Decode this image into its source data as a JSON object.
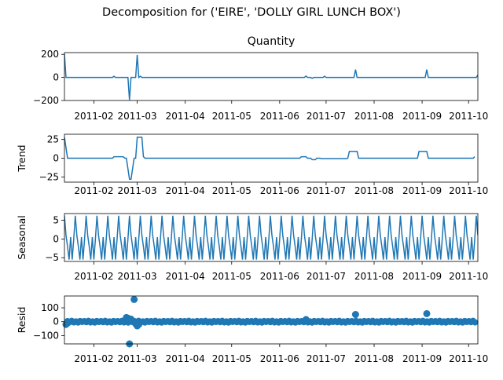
{
  "suptitle": "Decomposition for ('EIRE', 'DOLLY GIRL LUNCH BOX')",
  "colors": {
    "line": "#1f77b4",
    "axis": "#000000",
    "background": "#ffffff"
  },
  "chart_data": [
    {
      "type": "line",
      "title": "Quantity",
      "ylabel": "",
      "ylim": [
        -200,
        215
      ],
      "yticks": [
        -200,
        0,
        200
      ],
      "xlim": [
        "2011-01-13",
        "2011-10-07"
      ],
      "xticks": [
        "2011-02",
        "2011-03",
        "2011-04",
        "2011-05",
        "2011-06",
        "2011-07",
        "2011-08",
        "2011-09",
        "2011-10"
      ],
      "series": [
        {
          "x": [
            "2011-01-13",
            "2011-01-14",
            "2011-02-13",
            "2011-02-14",
            "2011-02-15",
            "2011-02-23",
            "2011-02-24",
            "2011-02-25",
            "2011-02-26",
            "2011-02-27",
            "2011-02-28",
            "2011-03-01",
            "2011-03-02",
            "2011-03-03",
            "2011-03-04",
            "2011-06-17",
            "2011-06-18",
            "2011-06-19",
            "2011-06-21",
            "2011-06-22",
            "2011-06-23",
            "2011-06-24",
            "2011-06-29",
            "2011-06-30",
            "2011-07-01",
            "2011-07-19",
            "2011-07-20",
            "2011-07-21",
            "2011-09-03",
            "2011-09-04",
            "2011-09-05",
            "2011-10-06",
            "2011-10-07"
          ],
          "values": [
            200,
            0,
            0,
            10,
            0,
            0,
            -195,
            0,
            0,
            0,
            0,
            195,
            0,
            10,
            0,
            0,
            12,
            0,
            0,
            -8,
            0,
            0,
            0,
            10,
            0,
            0,
            68,
            0,
            0,
            68,
            0,
            0,
            20
          ]
        }
      ]
    },
    {
      "type": "line",
      "title": "",
      "ylabel": "Trend",
      "ylim": [
        -32,
        32
      ],
      "yticks": [
        -25,
        0,
        25
      ],
      "xlim": [
        "2011-01-13",
        "2011-10-07"
      ],
      "xticks": [
        "2011-02",
        "2011-03",
        "2011-04",
        "2011-05",
        "2011-06",
        "2011-07",
        "2011-08",
        "2011-09",
        "2011-10"
      ],
      "series": [
        {
          "x": [
            "2011-01-13",
            "2011-01-15",
            "2011-02-13",
            "2011-02-14",
            "2011-02-20",
            "2011-02-21",
            "2011-02-22",
            "2011-02-24",
            "2011-02-25",
            "2011-02-27",
            "2011-02-28",
            "2011-03-01",
            "2011-03-04",
            "2011-03-05",
            "2011-03-06",
            "2011-06-14",
            "2011-06-15",
            "2011-06-18",
            "2011-06-19",
            "2011-06-21",
            "2011-06-22",
            "2011-06-24",
            "2011-06-25",
            "2011-06-27",
            "2011-06-28",
            "2011-07-14",
            "2011-07-15",
            "2011-07-16",
            "2011-07-21",
            "2011-07-22",
            "2011-07-23",
            "2011-08-28",
            "2011-08-29",
            "2011-08-30",
            "2011-09-04",
            "2011-09-05",
            "2011-09-06",
            "2011-10-04",
            "2011-10-05"
          ],
          "values": [
            28,
            0,
            0,
            2,
            2,
            0,
            0,
            -28,
            -28,
            0,
            0,
            28,
            28,
            2,
            0,
            0,
            2,
            2,
            0,
            0,
            -2,
            -2,
            0,
            0,
            -0.5,
            -0.5,
            0,
            9,
            9,
            0,
            0,
            0,
            0,
            9,
            9,
            0,
            0,
            0,
            2
          ]
        }
      ]
    },
    {
      "type": "line",
      "title": "",
      "ylabel": "Seasonal",
      "ylim": [
        -6,
        6.8
      ],
      "yticks": [
        -5,
        0,
        5
      ],
      "xlim": [
        "2011-01-13",
        "2011-10-07"
      ],
      "xticks": [
        "2011-02",
        "2011-03",
        "2011-04",
        "2011-05",
        "2011-06",
        "2011-07",
        "2011-08",
        "2011-09",
        "2011-10"
      ],
      "period_days": 7,
      "start": "2011-01-13",
      "end": "2011-10-07",
      "pattern": [
        6.2,
        1.0,
        -2.0,
        -5.5,
        0.5,
        -5.5,
        0.0
      ]
    },
    {
      "type": "scatter",
      "title": "",
      "ylabel": "Resid",
      "ylim": [
        -160,
        185
      ],
      "yticks": [
        -100,
        0,
        100
      ],
      "xlim": [
        "2011-01-13",
        "2011-10-07"
      ],
      "xticks": [
        "2011-02",
        "2011-03",
        "2011-04",
        "2011-05",
        "2011-06",
        "2011-07",
        "2011-08",
        "2011-09",
        "2011-10"
      ],
      "baseline": {
        "start": "2011-01-15",
        "end": "2011-10-06",
        "step_days": 1.35,
        "values": [
          4,
          -3,
          6,
          -5,
          2,
          -6,
          5,
          -2
        ]
      },
      "outliers": [
        {
          "x": "2011-01-14",
          "y": -20
        },
        {
          "x": "2011-01-15",
          "y": -10
        },
        {
          "x": "2011-02-22",
          "y": 30
        },
        {
          "x": "2011-02-23",
          "y": 25
        },
        {
          "x": "2011-02-24",
          "y": -160
        },
        {
          "x": "2011-02-25",
          "y": 18
        },
        {
          "x": "2011-02-27",
          "y": 160
        },
        {
          "x": "2011-02-28",
          "y": -15
        },
        {
          "x": "2011-03-01",
          "y": -30
        },
        {
          "x": "2011-03-02",
          "y": -20
        },
        {
          "x": "2011-06-18",
          "y": 15
        },
        {
          "x": "2011-07-20",
          "y": 52
        },
        {
          "x": "2011-09-04",
          "y": 58
        }
      ]
    }
  ]
}
